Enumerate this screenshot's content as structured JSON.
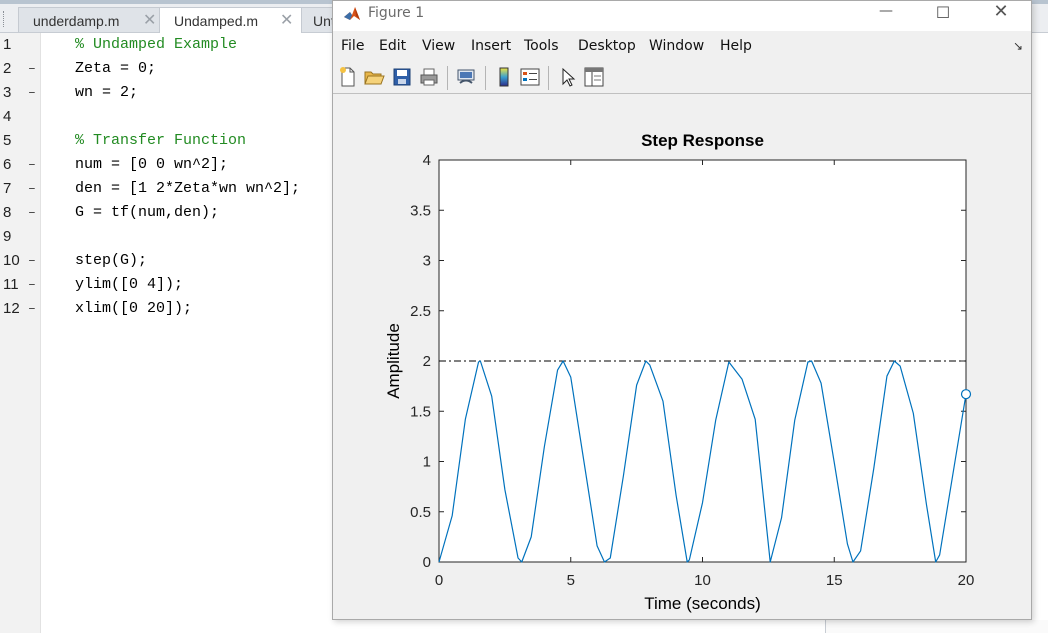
{
  "editor": {
    "tabs": [
      {
        "label": "underdamp.m",
        "active": false
      },
      {
        "label": "Undamped.m",
        "active": true
      },
      {
        "label": "Unt",
        "active": false
      }
    ],
    "lines": [
      {
        "num": "1",
        "dash": "",
        "text": "% Undamped Example",
        "comment": true
      },
      {
        "num": "2",
        "dash": "–",
        "text": "Zeta = 0;",
        "comment": false
      },
      {
        "num": "3",
        "dash": "–",
        "text": "wn = 2;",
        "comment": false
      },
      {
        "num": "4",
        "dash": "",
        "text": "",
        "comment": false
      },
      {
        "num": "5",
        "dash": "",
        "text": "% Transfer Function",
        "comment": true
      },
      {
        "num": "6",
        "dash": "–",
        "text": "num = [0 0 wn^2];",
        "comment": false
      },
      {
        "num": "7",
        "dash": "–",
        "text": "den = [1 2*Zeta*wn wn^2];",
        "comment": false
      },
      {
        "num": "8",
        "dash": "–",
        "text": "G = tf(num,den);",
        "comment": false
      },
      {
        "num": "9",
        "dash": "",
        "text": "",
        "comment": false
      },
      {
        "num": "10",
        "dash": "–",
        "text": "step(G);",
        "comment": false
      },
      {
        "num": "11",
        "dash": "–",
        "text": "ylim([0 4]);",
        "comment": false
      },
      {
        "num": "12",
        "dash": "–",
        "text": "xlim([0 20]);",
        "comment": false
      }
    ]
  },
  "figure": {
    "title": "Figure 1",
    "window_buttons": {
      "minimize": "—",
      "maximize": "☐",
      "close": "✕"
    },
    "menus": [
      "File",
      "Edit",
      "View",
      "Insert",
      "Tools",
      "Desktop",
      "Window",
      "Help"
    ],
    "menu_arrow": "↘",
    "toolbar_icons": [
      "new-figure-icon",
      "open-file-icon",
      "save-icon",
      "print-icon",
      "link-plot-icon",
      "colorbar-icon",
      "legend-icon",
      "edit-plot-arrow-icon",
      "property-inspector-icon"
    ]
  },
  "chart_data": {
    "type": "line",
    "title": "Step Response",
    "xlabel": "Time (seconds)",
    "ylabel": "Amplitude",
    "xlim": [
      0,
      20
    ],
    "ylim": [
      0,
      4
    ],
    "xticks": [
      "0",
      "5",
      "10",
      "15",
      "20"
    ],
    "yticks": [
      "0",
      "0.5",
      "1",
      "1.5",
      "2",
      "2.5",
      "3",
      "3.5",
      "4"
    ],
    "grid": false,
    "colors": {
      "line": "#0072bd",
      "reference": "#000000"
    },
    "series": [
      {
        "x": [
          0,
          0.5,
          1,
          1.5,
          1.57,
          2,
          2.5,
          3,
          3.14,
          3.5,
          4,
          4.5,
          4.71,
          5,
          5.5,
          6,
          6.28,
          6.5,
          7,
          7.5,
          7.85,
          8,
          8.5,
          9,
          9.42,
          9.5,
          10,
          10.5,
          11,
          11.5,
          12,
          12.57,
          13,
          13.5,
          14,
          14.14,
          14.5,
          15,
          15.5,
          15.71,
          16,
          16.5,
          17,
          17.28,
          17.5,
          18,
          18.5,
          18.85,
          19,
          19.5,
          20
        ],
        "y": [
          0,
          0.46,
          1.42,
          1.99,
          2.0,
          1.65,
          0.72,
          0.04,
          0,
          0.25,
          1.15,
          1.91,
          2.0,
          1.84,
          1.0,
          0.16,
          0,
          0.04,
          0.86,
          1.76,
          2.0,
          1.96,
          1.6,
          0.66,
          0,
          0.02,
          0.59,
          1.41,
          1.99,
          1.82,
          1.42,
          0,
          0.44,
          1.41,
          1.99,
          2.0,
          1.78,
          0.99,
          0.18,
          0,
          0.11,
          0.93,
          1.85,
          2.0,
          1.95,
          1.48,
          0.57,
          0,
          0.07,
          0.87,
          1.67
        ]
      }
    ],
    "reference_line": {
      "y": 2,
      "style": "dash-dot"
    },
    "end_marker": {
      "x": 20,
      "y": 1.67
    }
  }
}
